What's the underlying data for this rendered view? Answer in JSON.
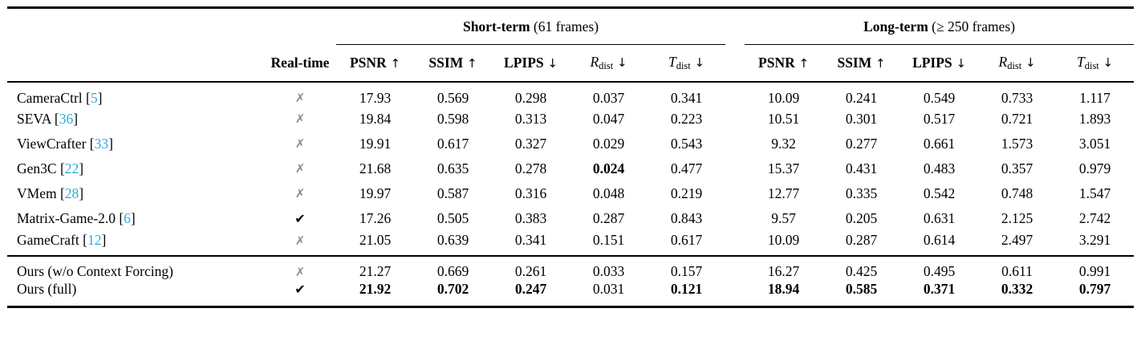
{
  "colors": {
    "cite": "#2fa9dc",
    "cross": "#8c8c8c",
    "check": "#000000",
    "rule": "#000000",
    "background": "#ffffff"
  },
  "marks": {
    "yes": "✔",
    "no": "✗"
  },
  "header": {
    "realtime_label": "Real-time",
    "groups": [
      {
        "title": "Short-term",
        "subtitle": " (61 frames)"
      },
      {
        "title": "Long-term",
        "subtitle": " (≥ 250 frames)"
      }
    ],
    "metrics": [
      {
        "label": "PSNR",
        "arrow": "↑",
        "style": "bold"
      },
      {
        "label": "SSIM",
        "arrow": "↑",
        "style": "bold"
      },
      {
        "label": "LPIPS",
        "arrow": "↓",
        "style": "bold"
      },
      {
        "label": "R",
        "sub": "dist",
        "arrow": "↓",
        "style": "math"
      },
      {
        "label": "T",
        "sub": "dist",
        "arrow": "↓",
        "style": "math"
      }
    ]
  },
  "rows": [
    {
      "method": "CameraCtrl",
      "cite": "5",
      "realtime": false,
      "short": [
        "17.93",
        "0.569",
        "0.298",
        "0.037",
        "0.341"
      ],
      "short_bold": [],
      "long": [
        "10.09",
        "0.241",
        "0.549",
        "0.733",
        "1.117"
      ],
      "long_bold": []
    },
    {
      "method": "SEVA",
      "cite": "36",
      "realtime": false,
      "short": [
        "19.84",
        "0.598",
        "0.313",
        "0.047",
        "0.223"
      ],
      "short_bold": [],
      "long": [
        "10.51",
        "0.301",
        "0.517",
        "0.721",
        "1.893"
      ],
      "long_bold": []
    },
    {
      "method": "ViewCrafter",
      "cite": "33",
      "realtime": false,
      "short": [
        "19.91",
        "0.617",
        "0.327",
        "0.029",
        "0.543"
      ],
      "short_bold": [],
      "long": [
        "9.32",
        "0.277",
        "0.661",
        "1.573",
        "3.051"
      ],
      "long_bold": []
    },
    {
      "method": "Gen3C",
      "cite": "22",
      "realtime": false,
      "short": [
        "21.68",
        "0.635",
        "0.278",
        "0.024",
        "0.477"
      ],
      "short_bold": [
        3
      ],
      "long": [
        "15.37",
        "0.431",
        "0.483",
        "0.357",
        "0.979"
      ],
      "long_bold": []
    },
    {
      "method": "VMem",
      "cite": "28",
      "realtime": false,
      "short": [
        "19.97",
        "0.587",
        "0.316",
        "0.048",
        "0.219"
      ],
      "short_bold": [],
      "long": [
        "12.77",
        "0.335",
        "0.542",
        "0.748",
        "1.547"
      ],
      "long_bold": []
    },
    {
      "method": "Matrix-Game-2.0",
      "cite": "6",
      "realtime": true,
      "short": [
        "17.26",
        "0.505",
        "0.383",
        "0.287",
        "0.843"
      ],
      "short_bold": [],
      "long": [
        "9.57",
        "0.205",
        "0.631",
        "2.125",
        "2.742"
      ],
      "long_bold": []
    },
    {
      "method": "GameCraft",
      "cite": "12",
      "realtime": false,
      "short": [
        "21.05",
        "0.639",
        "0.341",
        "0.151",
        "0.617"
      ],
      "short_bold": [],
      "long": [
        "10.09",
        "0.287",
        "0.614",
        "2.497",
        "3.291"
      ],
      "long_bold": []
    }
  ],
  "ours_rows": [
    {
      "method": "Ours (w/o Context Forcing)",
      "cite": "",
      "realtime": false,
      "short": [
        "21.27",
        "0.669",
        "0.261",
        "0.033",
        "0.157"
      ],
      "short_bold": [],
      "long": [
        "16.27",
        "0.425",
        "0.495",
        "0.611",
        "0.991"
      ],
      "long_bold": []
    },
    {
      "method": "Ours (full)",
      "cite": "",
      "realtime": true,
      "short": [
        "21.92",
        "0.702",
        "0.247",
        "0.031",
        "0.121"
      ],
      "short_bold": [
        0,
        1,
        2,
        4
      ],
      "long": [
        "18.94",
        "0.585",
        "0.371",
        "0.332",
        "0.797"
      ],
      "long_bold": [
        0,
        1,
        2,
        3,
        4
      ]
    }
  ]
}
